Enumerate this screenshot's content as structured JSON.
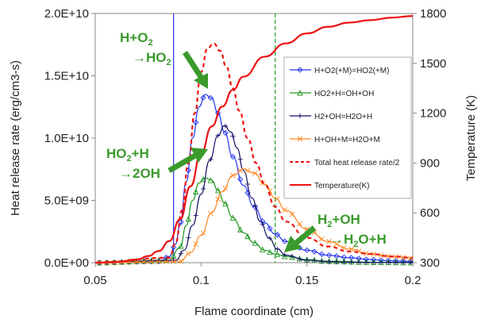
{
  "chart_data": {
    "type": "line",
    "xlabel": "Flame coordinate (cm)",
    "ylabel_left": "Heat release rate (erg/cm3-s)",
    "ylabel_right": "Temperature (K)",
    "xlim": [
      0.05,
      0.2
    ],
    "ylim_left": [
      0,
      20000000000.0
    ],
    "ylim_right": [
      300,
      1800
    ],
    "x_ticks": [
      "0.05",
      "0.1",
      "0.15",
      "0.2"
    ],
    "y_left_ticks": [
      "0.0E+00",
      "5.0E+09",
      "1.0E+10",
      "1.5E+10",
      "2.0E+10"
    ],
    "y_right_ticks": [
      "300",
      "600",
      "900",
      "1200",
      "1500",
      "1800"
    ],
    "legend_position": "right",
    "colors": {
      "r1": "#2233ee",
      "r2": "#229922",
      "r3": "#111166",
      "r4": "#ff8822",
      "total": "#ee1111",
      "temp": "#ee1111",
      "annotation": "#3a9a2c"
    },
    "vertical_lines": [
      {
        "x": 0.087,
        "style": "solid",
        "color": "#2233ee"
      },
      {
        "x": 0.135,
        "style": "dashed",
        "color": "#229922"
      }
    ],
    "series": [
      {
        "name": "H+O2(+M)=HO2(+M)",
        "axis": "left",
        "marker": "diamond",
        "x": [
          0.05,
          0.08,
          0.085,
          0.088,
          0.09,
          0.093,
          0.096,
          0.099,
          0.102,
          0.105,
          0.108,
          0.111,
          0.115,
          0.12,
          0.125,
          0.13,
          0.135,
          0.14,
          0.15,
          0.16,
          0.17,
          0.18,
          0.19,
          0.2
        ],
        "y": [
          0,
          100000000.0,
          500000000.0,
          1500000000.0,
          3000000000.0,
          6500000000.0,
          10000000000.0,
          12500000000.0,
          13500000000.0,
          13200000000.0,
          12000000000.0,
          10500000000.0,
          8500000000.0,
          6200000000.0,
          4500000000.0,
          3200000000.0,
          2300000000.0,
          1700000000.0,
          1000000000.0,
          600000000.0,
          400000000.0,
          250000000.0,
          150000000.0,
          100000000.0
        ]
      },
      {
        "name": "HO2+H=OH+OH",
        "axis": "left",
        "marker": "triangle",
        "x": [
          0.05,
          0.085,
          0.09,
          0.093,
          0.096,
          0.099,
          0.102,
          0.105,
          0.108,
          0.111,
          0.115,
          0.12,
          0.125,
          0.13,
          0.135,
          0.14,
          0.15,
          0.16,
          0.18,
          0.2
        ],
        "y": [
          0,
          200000000.0,
          1200000000.0,
          3000000000.0,
          5000000000.0,
          6400000000.0,
          6800000000.0,
          6600000000.0,
          5800000000.0,
          4800000000.0,
          3600000000.0,
          2400000000.0,
          1600000000.0,
          1000000000.0,
          700000000.0,
          500000000.0,
          250000000.0,
          120000000.0,
          40000000.0,
          10000000.0
        ]
      },
      {
        "name": "H2+OH=H2O+H",
        "axis": "left",
        "marker": "plus",
        "x": [
          0.05,
          0.088,
          0.092,
          0.096,
          0.1,
          0.104,
          0.108,
          0.111,
          0.114,
          0.117,
          0.12,
          0.124,
          0.128,
          0.132,
          0.136,
          0.14,
          0.15,
          0.16,
          0.17,
          0.18,
          0.2
        ],
        "y": [
          0,
          200000000.0,
          1000000000.0,
          3000000000.0,
          5500000000.0,
          8200000000.0,
          10200000000.0,
          11000000000.0,
          10500000000.0,
          9200000000.0,
          7400000000.0,
          5200000000.0,
          3300000000.0,
          2000000000.0,
          1100000000.0,
          600000000.0,
          200000000.0,
          80000000.0,
          40000000.0,
          20000000.0,
          10000000.0
        ]
      },
      {
        "name": "H+OH+M=H2O+M",
        "axis": "left",
        "marker": "cross",
        "x": [
          0.05,
          0.09,
          0.095,
          0.1,
          0.105,
          0.11,
          0.115,
          0.12,
          0.125,
          0.13,
          0.135,
          0.14,
          0.15,
          0.16,
          0.17,
          0.18,
          0.19,
          0.2
        ],
        "y": [
          0,
          100000000.0,
          800000000.0,
          2200000000.0,
          4000000000.0,
          5700000000.0,
          7000000000.0,
          7500000000.0,
          7200000000.0,
          6300000000.0,
          5200000000.0,
          4200000000.0,
          2700000000.0,
          1700000000.0,
          1100000000.0,
          700000000.0,
          500000000.0,
          350000000.0
        ]
      },
      {
        "name": "Total heat release rate/2",
        "axis": "left",
        "style": "dashed",
        "x": [
          0.05,
          0.085,
          0.088,
          0.091,
          0.094,
          0.097,
          0.1,
          0.103,
          0.106,
          0.109,
          0.112,
          0.115,
          0.118,
          0.122,
          0.126,
          0.13,
          0.135,
          0.14,
          0.15,
          0.16,
          0.17,
          0.18,
          0.19,
          0.2
        ],
        "y": [
          0,
          400000000.0,
          1600000000.0,
          4200000000.0,
          8000000000.0,
          12000000000.0,
          15300000000.0,
          17200000000.0,
          17600000000.0,
          17000000000.0,
          15700000000.0,
          14000000000.0,
          12200000000.0,
          10000000000.0,
          8000000000.0,
          6300000000.0,
          4500000000.0,
          3300000000.0,
          2000000000.0,
          1300000000.0,
          900000000.0,
          700000000.0,
          500000000.0,
          400000000.0
        ]
      },
      {
        "name": "Temperature(K)",
        "axis": "right",
        "style": "solid",
        "x": [
          0.05,
          0.06,
          0.07,
          0.075,
          0.08,
          0.085,
          0.09,
          0.095,
          0.1,
          0.105,
          0.11,
          0.115,
          0.12,
          0.13,
          0.14,
          0.15,
          0.16,
          0.17,
          0.18,
          0.19,
          0.2
        ],
        "y": [
          300,
          305,
          320,
          340,
          370,
          430,
          560,
          760,
          960,
          1120,
          1240,
          1340,
          1420,
          1540,
          1620,
          1680,
          1720,
          1745,
          1760,
          1775,
          1785
        ]
      }
    ],
    "annotations": [
      {
        "line1": "H+O",
        "sub1": "2",
        "line2": "→HO",
        "sub2": "2"
      },
      {
        "line1": "HO",
        "sub1": "2",
        "line1b": "+H",
        "line2": "→2OH"
      },
      {
        "line1": "H",
        "sub1": "2",
        "line1b": "+OH",
        "line2": "→H",
        "sub2": "2",
        "line2b": "O+H"
      }
    ]
  }
}
